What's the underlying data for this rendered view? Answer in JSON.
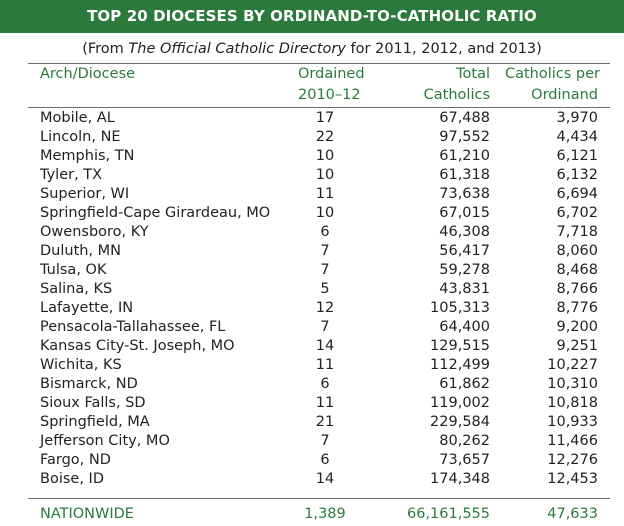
{
  "colors": {
    "accent": "#2b7a3c"
  },
  "title": "TOP 20 DIOCESES BY ORDINAND-TO-CATHOLIC RATIO",
  "subtitle": {
    "prefix": "(From ",
    "italic": "The Official Catholic Directory",
    "suffix": " for 2011, 2012, and 2013)"
  },
  "headers": {
    "name": "Arch/Diocese",
    "ordained_1": "Ordained",
    "ordained_2": "2010–12",
    "total_1": "Total",
    "total_2": "Catholics",
    "cpo_1": "Catholics per",
    "cpo_2": "Ordinand"
  },
  "rows": [
    {
      "name": "Mobile, AL",
      "ordained": "17",
      "total": "67,488",
      "cpo": "3,970"
    },
    {
      "name": "Lincoln, NE",
      "ordained": "22",
      "total": "97,552",
      "cpo": "4,434"
    },
    {
      "name": "Memphis, TN",
      "ordained": "10",
      "total": "61,210",
      "cpo": "6,121"
    },
    {
      "name": "Tyler, TX",
      "ordained": "10",
      "total": "61,318",
      "cpo": "6,132"
    },
    {
      "name": "Superior, WI",
      "ordained": "11",
      "total": "73,638",
      "cpo": "6,694"
    },
    {
      "name": "Springfield-Cape Girardeau, MO",
      "ordained": "10",
      "total": "67,015",
      "cpo": "6,702"
    },
    {
      "name": "Owensboro, KY",
      "ordained": "6",
      "total": "46,308",
      "cpo": "7,718"
    },
    {
      "name": "Duluth, MN",
      "ordained": "7",
      "total": "56,417",
      "cpo": "8,060"
    },
    {
      "name": "Tulsa, OK",
      "ordained": "7",
      "total": "59,278",
      "cpo": "8,468"
    },
    {
      "name": "Salina, KS",
      "ordained": "5",
      "total": "43,831",
      "cpo": "8,766"
    },
    {
      "name": "Lafayette, IN",
      "ordained": "12",
      "total": "105,313",
      "cpo": "8,776"
    },
    {
      "name": "Pensacola-Tallahassee, FL",
      "ordained": "7",
      "total": "64,400",
      "cpo": "9,200"
    },
    {
      "name": "Kansas City-St. Joseph, MO",
      "ordained": "14",
      "total": "129,515",
      "cpo": "9,251"
    },
    {
      "name": "Wichita, KS",
      "ordained": "11",
      "total": "112,499",
      "cpo": "10,227"
    },
    {
      "name": "Bismarck, ND",
      "ordained": "6",
      "total": "61,862",
      "cpo": "10,310"
    },
    {
      "name": "Sioux Falls, SD",
      "ordained": "11",
      "total": "119,002",
      "cpo": "10,818"
    },
    {
      "name": "Springfield, MA",
      "ordained": "21",
      "total": "229,584",
      "cpo": "10,933"
    },
    {
      "name": "Jefferson City, MO",
      "ordained": "7",
      "total": "80,262",
      "cpo": "11,466"
    },
    {
      "name": "Fargo, ND",
      "ordained": "6",
      "total": "73,657",
      "cpo": "12,276"
    },
    {
      "name": "Boise, ID",
      "ordained": "14",
      "total": "174,348",
      "cpo": "12,453"
    }
  ],
  "nationwide": {
    "name": "NATIONWIDE",
    "ordained": "1,389",
    "total": "66,161,555",
    "cpo": "47,633"
  }
}
